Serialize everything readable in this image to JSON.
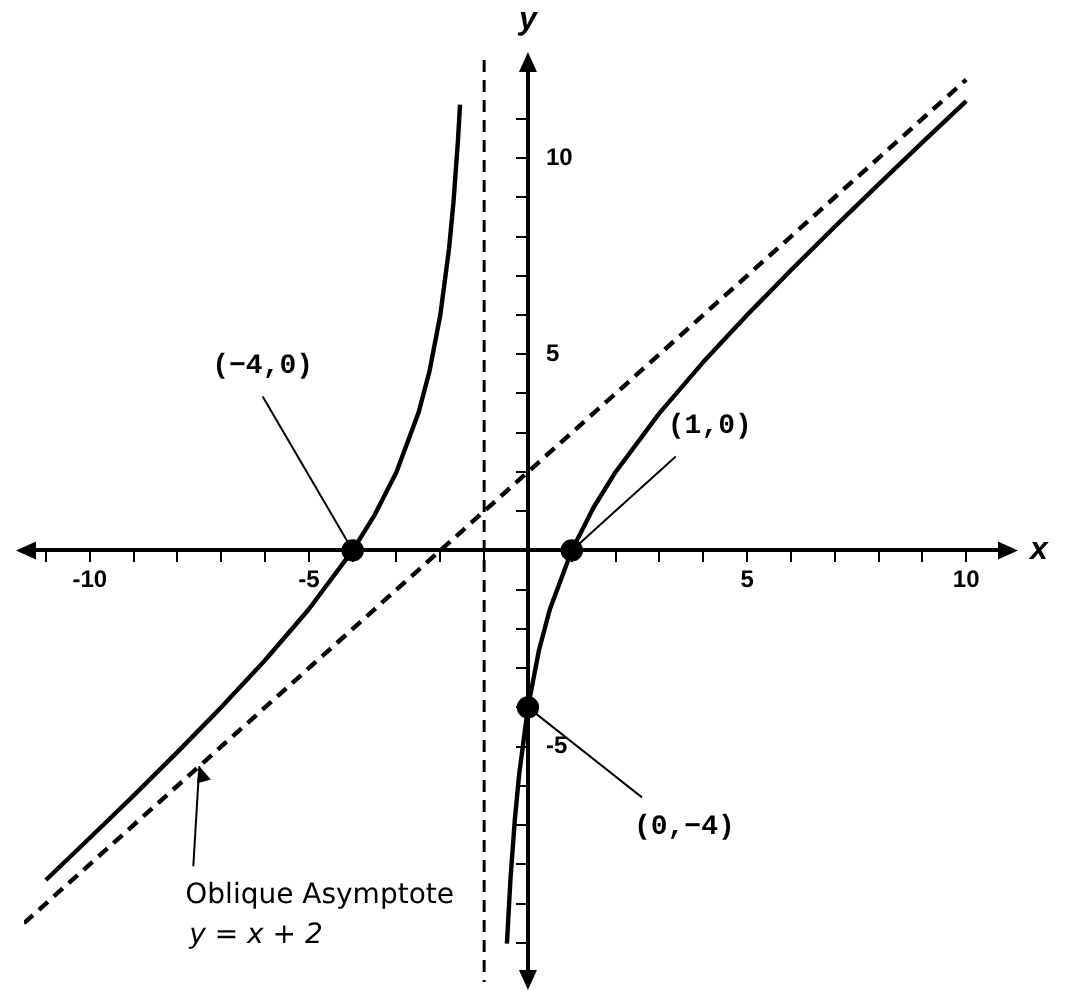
{
  "chart_data": {
    "type": "line",
    "xlabel": "x",
    "ylabel": "y",
    "xlim": [
      -11.5,
      11
    ],
    "ylim": [
      -11,
      12.5
    ],
    "xticks": [
      {
        "value": -11,
        "label": null
      },
      -10,
      {
        "value": -9,
        "label": null
      },
      {
        "value": -8,
        "label": null
      },
      {
        "value": -7,
        "label": null
      },
      {
        "value": -6,
        "label": null
      },
      -5,
      {
        "value": -4,
        "label": null
      },
      {
        "value": -3,
        "label": null
      },
      {
        "value": -2,
        "label": null
      },
      {
        "value": -1,
        "label": null
      },
      {
        "value": 1,
        "label": null
      },
      {
        "value": 2,
        "label": null
      },
      {
        "value": 3,
        "label": null
      },
      {
        "value": 4,
        "label": null
      },
      5,
      {
        "value": 6,
        "label": null
      },
      {
        "value": 7,
        "label": null
      },
      {
        "value": 8,
        "label": null
      },
      {
        "value": 9,
        "label": null
      },
      10
    ],
    "yticks": [
      {
        "value": -10,
        "label": null
      },
      {
        "value": -9,
        "label": null
      },
      {
        "value": -8,
        "label": null
      },
      {
        "value": -7,
        "label": null
      },
      {
        "value": -6,
        "label": null
      },
      -5,
      {
        "value": -4,
        "label": null
      },
      {
        "value": -3,
        "label": null
      },
      {
        "value": -2,
        "label": null
      },
      {
        "value": -1,
        "label": null
      },
      {
        "value": 1,
        "label": null
      },
      {
        "value": 2,
        "label": null
      },
      {
        "value": 3,
        "label": null
      },
      {
        "value": 4,
        "label": null
      },
      5,
      {
        "value": 6,
        "label": null
      },
      {
        "value": 7,
        "label": null
      },
      {
        "value": 8,
        "label": null
      },
      {
        "value": 9,
        "label": null
      },
      10,
      {
        "value": 11,
        "label": null
      }
    ],
    "grid": false,
    "legend": false,
    "series": [
      {
        "color": "#000000",
        "line_style": "solid",
        "marker": "none",
        "x": [
          -11,
          -10,
          -9,
          -8,
          -7,
          -6,
          -5,
          -4,
          -3.5,
          -3,
          -2.5,
          -2.25,
          -2,
          -1.8,
          -1.7,
          -1.6,
          -1.55
        ],
        "values": [
          -8.4,
          -7.33,
          -6.25,
          -5.14,
          -4,
          -2.8,
          -1.5,
          0,
          0.9,
          2,
          3.5,
          4.55,
          6,
          7.7,
          8.87,
          10.4,
          11.36
        ]
      },
      {
        "color": "#000000",
        "line_style": "solid",
        "marker": "none",
        "x": [
          -0.48,
          -0.4,
          -0.3,
          -0.2,
          0,
          0.25,
          0.5,
          1,
          1.5,
          2,
          3,
          4,
          5,
          6,
          7,
          8,
          9,
          10
        ],
        "values": [
          -10.02,
          -8.4,
          -6.87,
          -5.7,
          -4,
          -2.55,
          -1.5,
          0,
          1.1,
          2,
          3.5,
          4.8,
          6,
          7.14,
          8.25,
          9.33,
          10.4,
          11.45
        ]
      },
      {
        "color": "#000000",
        "line_style": "dashed",
        "marker": "none",
        "x": [
          -11.5,
          10
        ],
        "values": [
          -9.5,
          12
        ]
      },
      {
        "type": "scatter",
        "color": "#000000",
        "marker": "circle",
        "x": [
          -4,
          1,
          0
        ],
        "values": [
          0,
          0,
          -4
        ]
      }
    ],
    "ref_lines": [
      {
        "axis": "x",
        "value": -1,
        "line_style": "dashed",
        "color": "#000000"
      }
    ],
    "annotations": [
      {
        "text": "(−4,0)",
        "x": -4,
        "y": 0
      },
      {
        "text": "(1,0)",
        "x": 1,
        "y": 0
      },
      {
        "text": "(0,−4)",
        "x": 0,
        "y": -4
      },
      {
        "text": "Oblique Asymptote",
        "x": -7.5,
        "y": -5.5
      },
      "y = x + 2"
    ]
  }
}
